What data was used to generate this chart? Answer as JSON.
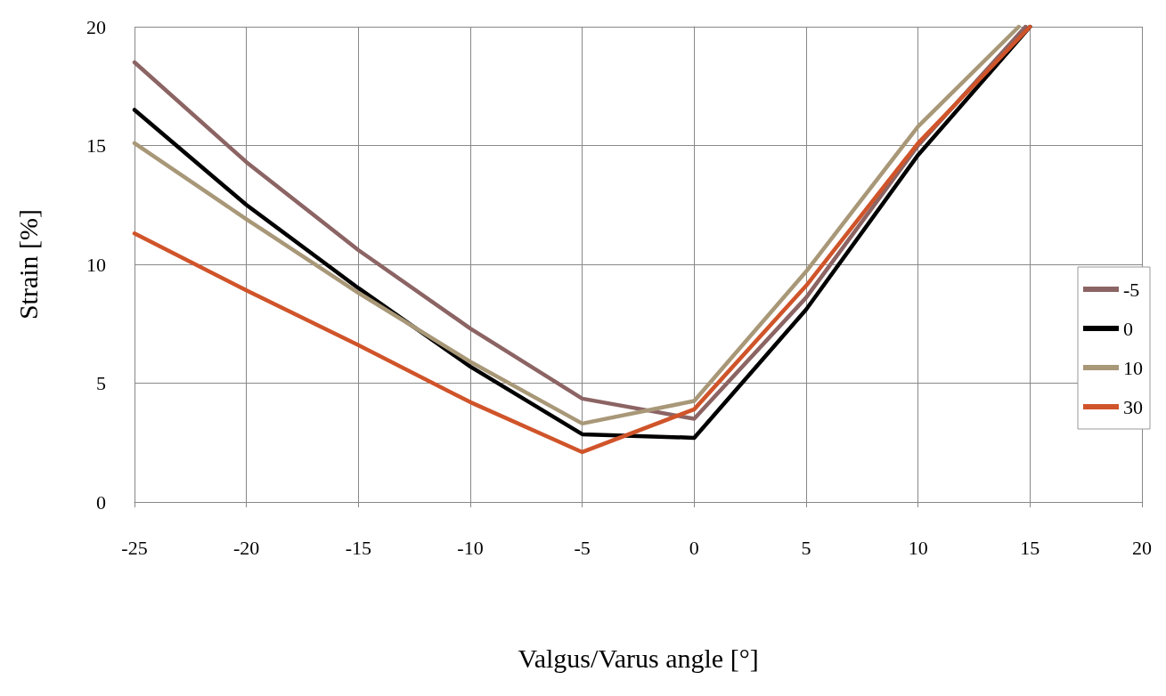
{
  "chart_data": {
    "type": "line",
    "xlabel": "Valgus/Varus angle [°]",
    "ylabel": "Strain [%]",
    "xlim": [
      -25,
      20
    ],
    "xticks": [
      -25,
      -20,
      -15,
      -10,
      -5,
      0,
      5,
      10,
      15,
      20
    ],
    "ylim": [
      0,
      20
    ],
    "yticks": [
      0,
      5,
      10,
      15,
      20
    ],
    "grid": true,
    "legend": "right",
    "marker": "none",
    "line_style": "solid",
    "series": [
      {
        "name": "-5",
        "color": "#8c6464",
        "x": [
          -25,
          -20,
          -15,
          -10,
          -5,
          0,
          5,
          10,
          14.8
        ],
        "values": [
          18.5,
          14.3,
          10.6,
          7.3,
          4.35,
          3.5,
          8.6,
          15.0,
          20
        ]
      },
      {
        "name": "0",
        "color": "#000000",
        "x": [
          -25,
          -20,
          -15,
          -10,
          -5,
          0,
          5,
          10,
          15
        ],
        "values": [
          16.5,
          12.5,
          9.0,
          5.7,
          2.85,
          2.7,
          8.1,
          14.6,
          20
        ]
      },
      {
        "name": "10",
        "color": "#a89878",
        "x": [
          -25,
          -20,
          -15,
          -10,
          -5,
          0,
          5,
          10,
          14.5
        ],
        "values": [
          15.1,
          11.9,
          8.8,
          5.9,
          3.3,
          4.25,
          9.7,
          15.8,
          20
        ]
      },
      {
        "name": "30",
        "color": "#d0542a",
        "x": [
          -25,
          -20,
          -15,
          -10,
          -5,
          0,
          5,
          10,
          15
        ],
        "values": [
          11.3,
          8.9,
          6.6,
          4.2,
          2.1,
          3.9,
          9.1,
          15.1,
          20
        ]
      }
    ]
  }
}
